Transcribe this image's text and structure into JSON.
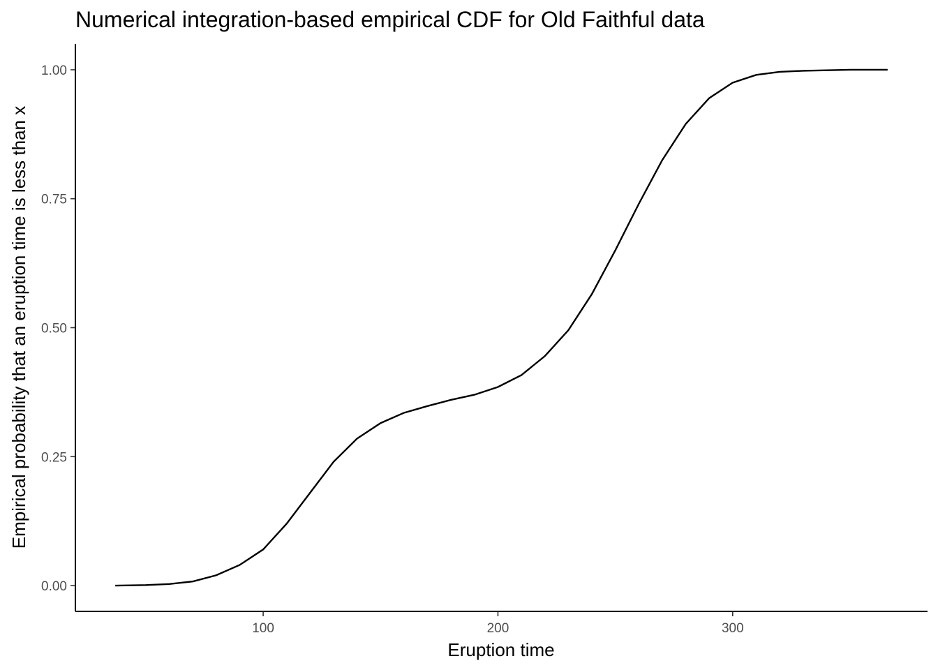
{
  "chart_data": {
    "type": "line",
    "title": "Numerical integration-based empirical CDF for Old Faithful data",
    "xlabel": "Eruption time",
    "ylabel": "Empirical probability that an eruption time is less than x",
    "xlim": [
      20,
      383
    ],
    "ylim": [
      -0.05,
      1.05
    ],
    "x_ticks": [
      100,
      200,
      300
    ],
    "x_tick_labels": [
      "100",
      "200",
      "300"
    ],
    "y_ticks": [
      0,
      0.25,
      0.5,
      0.75,
      1
    ],
    "y_tick_labels": [
      "0.00",
      "0.25",
      "0.50",
      "0.75",
      "1.00"
    ],
    "grid": false,
    "legend": "none",
    "line_color": "#000000",
    "series": [
      {
        "x": [
          37,
          50,
          60,
          70,
          80,
          90,
          100,
          110,
          120,
          130,
          140,
          150,
          160,
          170,
          180,
          190,
          200,
          210,
          220,
          230,
          240,
          250,
          260,
          270,
          280,
          290,
          300,
          310,
          320,
          330,
          340,
          350,
          360,
          366
        ],
        "y": [
          0.0,
          0.001,
          0.003,
          0.008,
          0.02,
          0.04,
          0.07,
          0.12,
          0.18,
          0.24,
          0.285,
          0.315,
          0.335,
          0.348,
          0.36,
          0.37,
          0.385,
          0.408,
          0.445,
          0.495,
          0.565,
          0.65,
          0.74,
          0.825,
          0.895,
          0.945,
          0.975,
          0.99,
          0.996,
          0.998,
          0.999,
          1.0,
          1.0,
          1.0
        ]
      }
    ]
  }
}
